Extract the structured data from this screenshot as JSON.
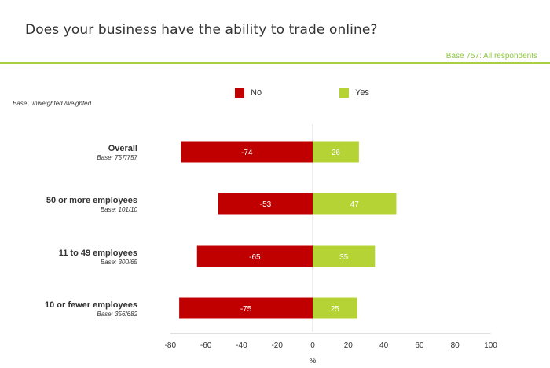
{
  "header": {
    "title": "Does your business have the ability to trade online?",
    "base_note": "Base 757: All respondents",
    "base_type": "Base: unweighted /weighted"
  },
  "colors": {
    "no": "#c00000",
    "yes": "#b5d334",
    "rule": "#a9cf46",
    "base_note": "#8dc63f"
  },
  "chart_data": {
    "type": "bar",
    "orientation": "horizontal-diverging",
    "categories": [
      "Overall",
      "50 or more employees",
      "11 to 49 employees",
      "10 or fewer employees"
    ],
    "category_bases": [
      "Base: 757/757",
      "Base: 101/10",
      "Base: 300/65",
      "Base: 356/682"
    ],
    "series": [
      {
        "name": "No",
        "values": [
          -74,
          -53,
          -65,
          -75
        ]
      },
      {
        "name": "Yes",
        "values": [
          26,
          47,
          35,
          25
        ]
      }
    ],
    "xlim": [
      -80,
      100
    ],
    "xticks": [
      -80,
      -60,
      -40,
      -20,
      0,
      20,
      40,
      60,
      80,
      100
    ],
    "xlabel": "%",
    "legend_position": "top",
    "grid": false
  }
}
